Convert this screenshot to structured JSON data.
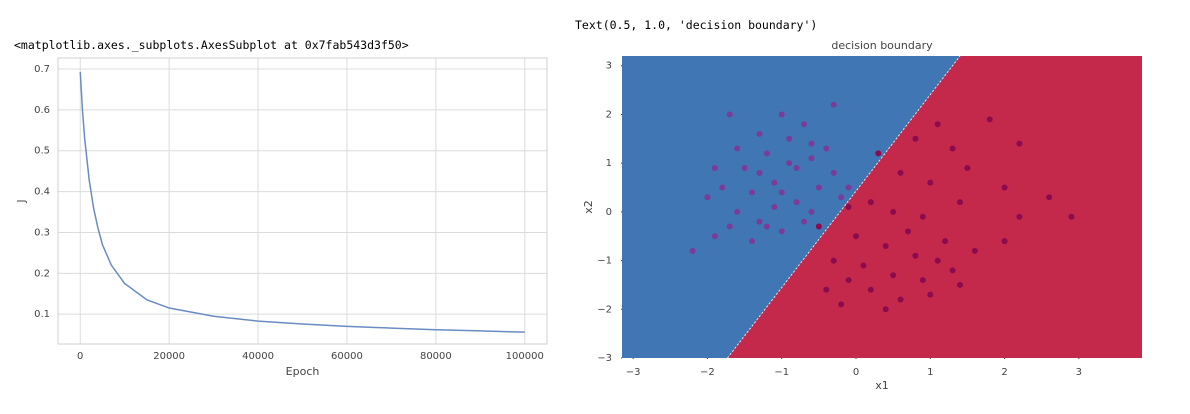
{
  "outputs": [
    "<matplotlib.axes._subplots.AxesSubplot at 0x7fab543d3f50>",
    "Text(0.5, 1.0, 'decision boundary')"
  ],
  "chart_data": [
    {
      "type": "line",
      "xlabel": "Epoch",
      "ylabel": "J",
      "x": [
        0,
        500,
        1000,
        2000,
        3000,
        4000,
        5000,
        7000,
        10000,
        15000,
        20000,
        30000,
        40000,
        50000,
        60000,
        70000,
        80000,
        90000,
        100000
      ],
      "series": [
        {
          "color": "#6a8cc3",
          "values": [
            0.693,
            0.6,
            0.53,
            0.43,
            0.36,
            0.31,
            0.27,
            0.22,
            0.175,
            0.135,
            0.115,
            0.095,
            0.083,
            0.076,
            0.07,
            0.066,
            0.062,
            0.059,
            0.056
          ]
        }
      ],
      "xlim": [
        -5000,
        105000
      ],
      "ylim": [
        0.027,
        0.727
      ],
      "xticks": [
        0,
        20000,
        40000,
        60000,
        80000,
        100000
      ],
      "yticks": [
        0.1,
        0.2,
        0.3,
        0.4,
        0.5,
        0.6,
        0.7
      ],
      "grid": true
    },
    {
      "type": "scatter",
      "title": "decision boundary",
      "xlabel": "x1",
      "ylabel": "x2",
      "xlim": [
        -3.15,
        3.85
      ],
      "ylim": [
        -3,
        3.2
      ],
      "xticks": [
        {
          "value": -3,
          "label": "−3"
        },
        {
          "value": -2,
          "label": "−2"
        },
        {
          "value": -1,
          "label": "−1"
        },
        0,
        1,
        2,
        3
      ],
      "yticks": [
        {
          "value": -3,
          "label": "−3"
        },
        {
          "value": -2,
          "label": "−2"
        },
        {
          "value": -1,
          "label": "−1"
        },
        0,
        1,
        2,
        3
      ],
      "region_colors": [
        "#3f76b3",
        "#c4294b"
      ],
      "boundary": {
        "x": [
          -1.73,
          1.4
        ],
        "y": [
          -3,
          3.2
        ]
      },
      "series": [
        {
          "color": "#7b3c99",
          "x": [
            -1.7,
            -1.3,
            -1.0,
            -0.7,
            -0.3,
            -0.6,
            -1.2,
            -0.9,
            -1.5,
            -1.8,
            -2.0,
            -1.6,
            -1.3,
            -1.0,
            -1.4,
            -2.2,
            -1.9,
            -0.8,
            -0.5,
            -0.3,
            -0.6,
            -1.1,
            -0.8,
            -1.4,
            -0.2,
            -0.7,
            -1.1,
            -1.6,
            -1.9,
            -0.4,
            -0.9,
            -1.2,
            -0.5,
            -1.7,
            -1.3,
            -0.6,
            -1.0,
            -0.1
          ],
          "y": [
            2.0,
            1.6,
            2.0,
            1.8,
            2.2,
            1.4,
            1.2,
            1.0,
            0.9,
            0.5,
            0.3,
            0.0,
            -0.2,
            -0.4,
            -0.6,
            -0.8,
            -0.5,
            0.2,
            0.5,
            0.8,
            0.0,
            0.6,
            0.9,
            0.4,
            0.3,
            -0.2,
            0.1,
            1.3,
            0.9,
            1.3,
            1.5,
            -0.3,
            -0.3,
            -0.3,
            0.8,
            1.1,
            0.4,
            0.5
          ]
        },
        {
          "color": "#8c0b4f",
          "x": [
            0.3,
            0.8,
            1.1,
            1.3,
            1.8,
            2.2,
            0.6,
            1.0,
            1.5,
            2.0,
            0.2,
            0.5,
            0.9,
            1.4,
            2.2,
            2.9,
            2.6,
            0.0,
            0.4,
            0.8,
            1.2,
            1.6,
            2.0,
            0.1,
            0.5,
            0.9,
            1.3,
            0.2,
            0.6,
            1.0,
            -0.2,
            -0.4,
            -0.1,
            0.4,
            1.4,
            -0.3,
            0.7,
            1.1,
            -0.1,
            -0.5
          ],
          "y": [
            1.2,
            1.5,
            1.8,
            1.3,
            1.9,
            1.4,
            0.8,
            0.6,
            0.9,
            0.5,
            0.2,
            0.0,
            -0.1,
            0.2,
            -0.1,
            -0.1,
            0.3,
            -0.5,
            -0.7,
            -0.9,
            -0.6,
            -0.8,
            -0.6,
            -1.1,
            -1.3,
            -1.4,
            -1.2,
            -1.6,
            -1.8,
            -1.7,
            -1.9,
            -1.6,
            -1.4,
            -2.0,
            -1.5,
            -1.0,
            -0.4,
            -1.0,
            0.1,
            -0.3
          ]
        }
      ]
    }
  ]
}
